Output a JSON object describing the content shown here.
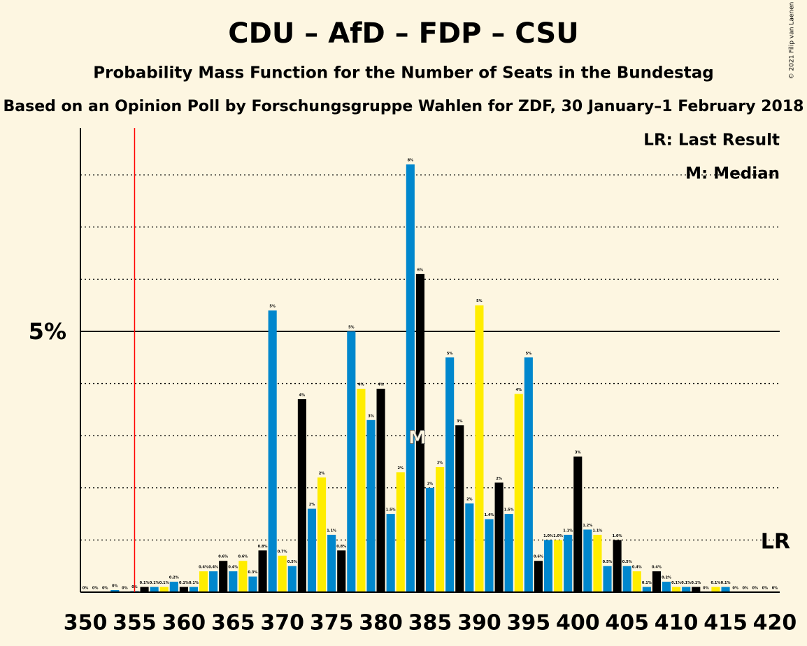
{
  "chart_data": {
    "type": "bar",
    "title": "CDU – AfD – FDP – CSU",
    "subtitle": "Probability Mass Function for the Number of Seats in the Bundestag",
    "subtitle2": "Based on an Opinion Poll by Forschungsgruppe Wahlen for ZDF, 30 January–1 February 2018",
    "copyright": "© 2021 Filip van Laenen",
    "legend": [
      "LR: Last Result",
      "M: Median"
    ],
    "x": [
      350,
      351,
      352,
      353,
      354,
      355,
      356,
      357,
      358,
      359,
      360,
      361,
      362,
      363,
      364,
      365,
      366,
      367,
      368,
      369,
      370,
      371,
      372,
      373,
      374,
      375,
      376,
      377,
      378,
      379,
      380,
      381,
      382,
      383,
      384,
      385,
      386,
      387,
      388,
      389,
      390,
      391,
      392,
      393,
      394,
      395,
      396,
      397,
      398,
      399,
      400,
      401,
      402,
      403,
      404,
      405,
      406,
      407,
      408,
      409,
      410,
      411,
      412,
      413,
      414,
      415,
      416,
      417,
      418,
      419,
      420
    ],
    "values": [
      0,
      0,
      0,
      0.04,
      0,
      0.02,
      0.1,
      0.1,
      0.1,
      0.2,
      0.1,
      0.1,
      0.4,
      0.4,
      0.6,
      0.4,
      0.6,
      0.3,
      0.8,
      5.4,
      0.7,
      0.5,
      3.7,
      1.6,
      2.2,
      1.1,
      0.8,
      5.0,
      3.9,
      3.3,
      3.9,
      1.5,
      2.3,
      8.2,
      6.1,
      2.0,
      2.4,
      4.5,
      3.2,
      1.7,
      5.5,
      1.4,
      2.1,
      1.5,
      3.8,
      4.5,
      0.6,
      1.0,
      1.0,
      1.1,
      2.6,
      1.2,
      1.1,
      0.5,
      1.0,
      0.5,
      0.4,
      0.1,
      0.4,
      0.2,
      0.1,
      0.1,
      0.1,
      0,
      0.1,
      0.1,
      0,
      0,
      0,
      0,
      0
    ],
    "value_labels": [
      "0%",
      "0%",
      "0%",
      "0%",
      "0%",
      "0%",
      "0.1%",
      "0.1%",
      "0.1%",
      "0.2%",
      "0.1%",
      "0.1%",
      "0.4%",
      "0.4%",
      "0.6%",
      "0.4%",
      "0.6%",
      "0.3%",
      "0.8%",
      "5%",
      "0.7%",
      "0.5%",
      "4%",
      "2%",
      "2%",
      "1.1%",
      "0.8%",
      "5%",
      "4%",
      "3%",
      "4%",
      "1.5%",
      "2%",
      "8%",
      "6%",
      "2%",
      "2%",
      "5%",
      "3%",
      "2%",
      "5%",
      "1.4%",
      "2%",
      "1.5%",
      "4%",
      "5%",
      "0.6%",
      "1.0%",
      "1.0%",
      "1.1%",
      "3%",
      "1.2%",
      "1.1%",
      "0.5%",
      "1.0%",
      "0.5%",
      "0.4%",
      "0.1%",
      "0.4%",
      "0.2%",
      "0.1%",
      "0.1%",
      "0.1%",
      "0%",
      "0.1%",
      "0.1%",
      "0%",
      "0%",
      "0%",
      "0%",
      "0%"
    ],
    "colors": [
      "#ffed00",
      "#0087cd",
      "#000000",
      "#0087cd"
    ],
    "color_start": 350,
    "xlim": [
      349.5,
      420.5
    ],
    "xticks": [
      350,
      355,
      360,
      365,
      370,
      375,
      380,
      385,
      390,
      395,
      400,
      405,
      410,
      415,
      420
    ],
    "ylim": [
      0,
      8.9
    ],
    "yticks": [
      {
        "value": 5,
        "label": "5%"
      }
    ],
    "grid_lines": [
      1,
      2,
      3,
      4,
      6,
      7,
      8
    ],
    "median": 384,
    "median_label": "M",
    "last_result": 355,
    "last_result_label": "LR"
  }
}
